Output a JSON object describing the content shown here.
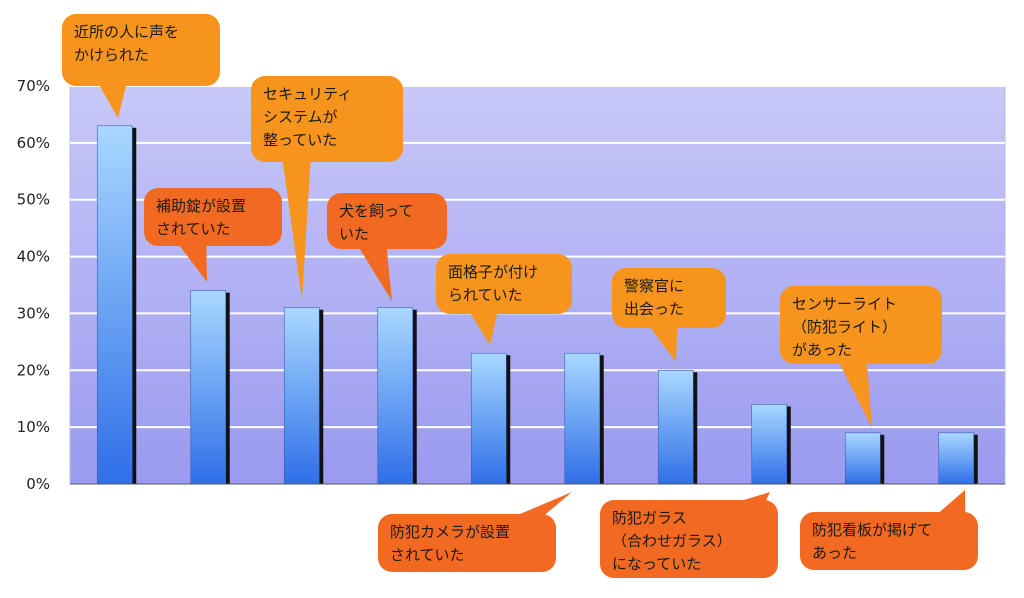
{
  "chart_data": {
    "type": "bar",
    "title": "",
    "xlabel": "",
    "ylabel": "",
    "ylim": [
      0,
      70
    ],
    "y_ticks": [
      "0%",
      "10%",
      "20%",
      "30%",
      "40%",
      "50%",
      "60%",
      "70%"
    ],
    "y_tick_values": [
      0,
      10,
      20,
      30,
      40,
      50,
      60,
      70
    ],
    "unit": "%",
    "grid": true,
    "categories": [
      "近所の人に声をかけられた",
      "補助錠が設置されていた",
      "セキュリティシステムが整っていた",
      "犬を飼っていた",
      "面格子が付けられていた",
      "防犯カメラが設置されていた",
      "警察官に出会った",
      "防犯ガラス（合わせガラス）になっていた",
      "センサーライト（防犯ライト）があった",
      "防犯看板が掲げてあった"
    ],
    "values": [
      63,
      34,
      31,
      31,
      23,
      23,
      20,
      14,
      9,
      9
    ],
    "callouts": [
      {
        "lines": [
          "近所の人に声を",
          "かけられた"
        ],
        "color": "#f7941d",
        "light": false,
        "position": "above"
      },
      {
        "lines": [
          "補助錠が設置",
          "されていた"
        ],
        "color": "#f26a21",
        "light": false,
        "position": "above"
      },
      {
        "lines": [
          "セキュリティ",
          "システムが",
          "整っていた"
        ],
        "color": "#f7941d",
        "light": false,
        "position": "above"
      },
      {
        "lines": [
          "犬を飼って",
          "いた"
        ],
        "color": "#f26a21",
        "light": false,
        "position": "above"
      },
      {
        "lines": [
          "面格子が付け",
          "られていた"
        ],
        "color": "#f7941d",
        "light": false,
        "position": "above"
      },
      {
        "lines": [
          "防犯カメラが設置",
          "されていた"
        ],
        "color": "#f26a21",
        "light": false,
        "position": "below"
      },
      {
        "lines": [
          "警察官に",
          "出会った"
        ],
        "color": "#f7941d",
        "light": false,
        "position": "above"
      },
      {
        "lines": [
          "防犯ガラス",
          "（合わせガラス）",
          "になっていた"
        ],
        "color": "#f26a21",
        "light": false,
        "position": "below"
      },
      {
        "lines": [
          "センサーライト",
          "（防犯ライト）",
          "があった"
        ],
        "color": "#f7941d",
        "light": false,
        "position": "above"
      },
      {
        "lines": [
          "防犯看板が掲げて",
          "あった"
        ],
        "color": "#f26a21",
        "light": false,
        "position": "below"
      }
    ],
    "colors": {
      "plot_top": "#c8c8f8",
      "plot_bottom": "#9a9af0",
      "bar_top": "#a9d8ff",
      "bar_bottom": "#2f6fe8",
      "bar_shadow": "#111111",
      "gridline": "#ffffff"
    }
  }
}
